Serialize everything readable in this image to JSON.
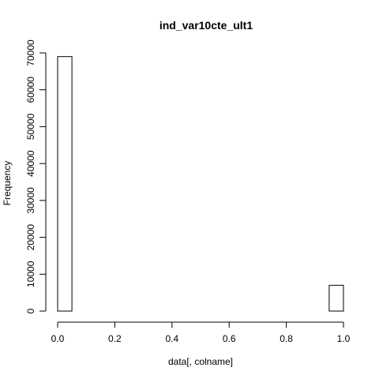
{
  "chart_data": {
    "type": "bar",
    "title": "ind_var10cte_ult1",
    "xlabel": "data[, colname]",
    "ylabel": "Frequency",
    "xlim": [
      0,
      1
    ],
    "ylim": [
      0,
      70000
    ],
    "x_ticks": [
      0.0,
      0.2,
      0.4,
      0.6,
      0.8,
      1.0
    ],
    "x_tick_labels": [
      "0.0",
      "0.2",
      "0.4",
      "0.6",
      "0.8",
      "1.0"
    ],
    "y_ticks": [
      0,
      10000,
      20000,
      30000,
      40000,
      50000,
      60000,
      70000
    ],
    "y_tick_labels": [
      "0",
      "10000",
      "20000",
      "30000",
      "40000",
      "50000",
      "60000",
      "70000"
    ],
    "bins": [
      {
        "start": 0.0,
        "end": 0.05,
        "count": 69000
      },
      {
        "start": 0.05,
        "end": 0.1,
        "count": 0
      },
      {
        "start": 0.1,
        "end": 0.15,
        "count": 0
      },
      {
        "start": 0.15,
        "end": 0.2,
        "count": 0
      },
      {
        "start": 0.2,
        "end": 0.25,
        "count": 0
      },
      {
        "start": 0.25,
        "end": 0.3,
        "count": 0
      },
      {
        "start": 0.3,
        "end": 0.35,
        "count": 0
      },
      {
        "start": 0.35,
        "end": 0.4,
        "count": 0
      },
      {
        "start": 0.4,
        "end": 0.45,
        "count": 0
      },
      {
        "start": 0.45,
        "end": 0.5,
        "count": 0
      },
      {
        "start": 0.5,
        "end": 0.55,
        "count": 0
      },
      {
        "start": 0.55,
        "end": 0.6,
        "count": 0
      },
      {
        "start": 0.6,
        "end": 0.65,
        "count": 0
      },
      {
        "start": 0.65,
        "end": 0.7,
        "count": 0
      },
      {
        "start": 0.7,
        "end": 0.75,
        "count": 0
      },
      {
        "start": 0.75,
        "end": 0.8,
        "count": 0
      },
      {
        "start": 0.8,
        "end": 0.85,
        "count": 0
      },
      {
        "start": 0.85,
        "end": 0.9,
        "count": 0
      },
      {
        "start": 0.9,
        "end": 0.95,
        "count": 0
      },
      {
        "start": 0.95,
        "end": 1.0,
        "count": 7000
      }
    ],
    "grid": false,
    "bar_fill": "#ffffff",
    "bar_stroke": "#000000"
  }
}
